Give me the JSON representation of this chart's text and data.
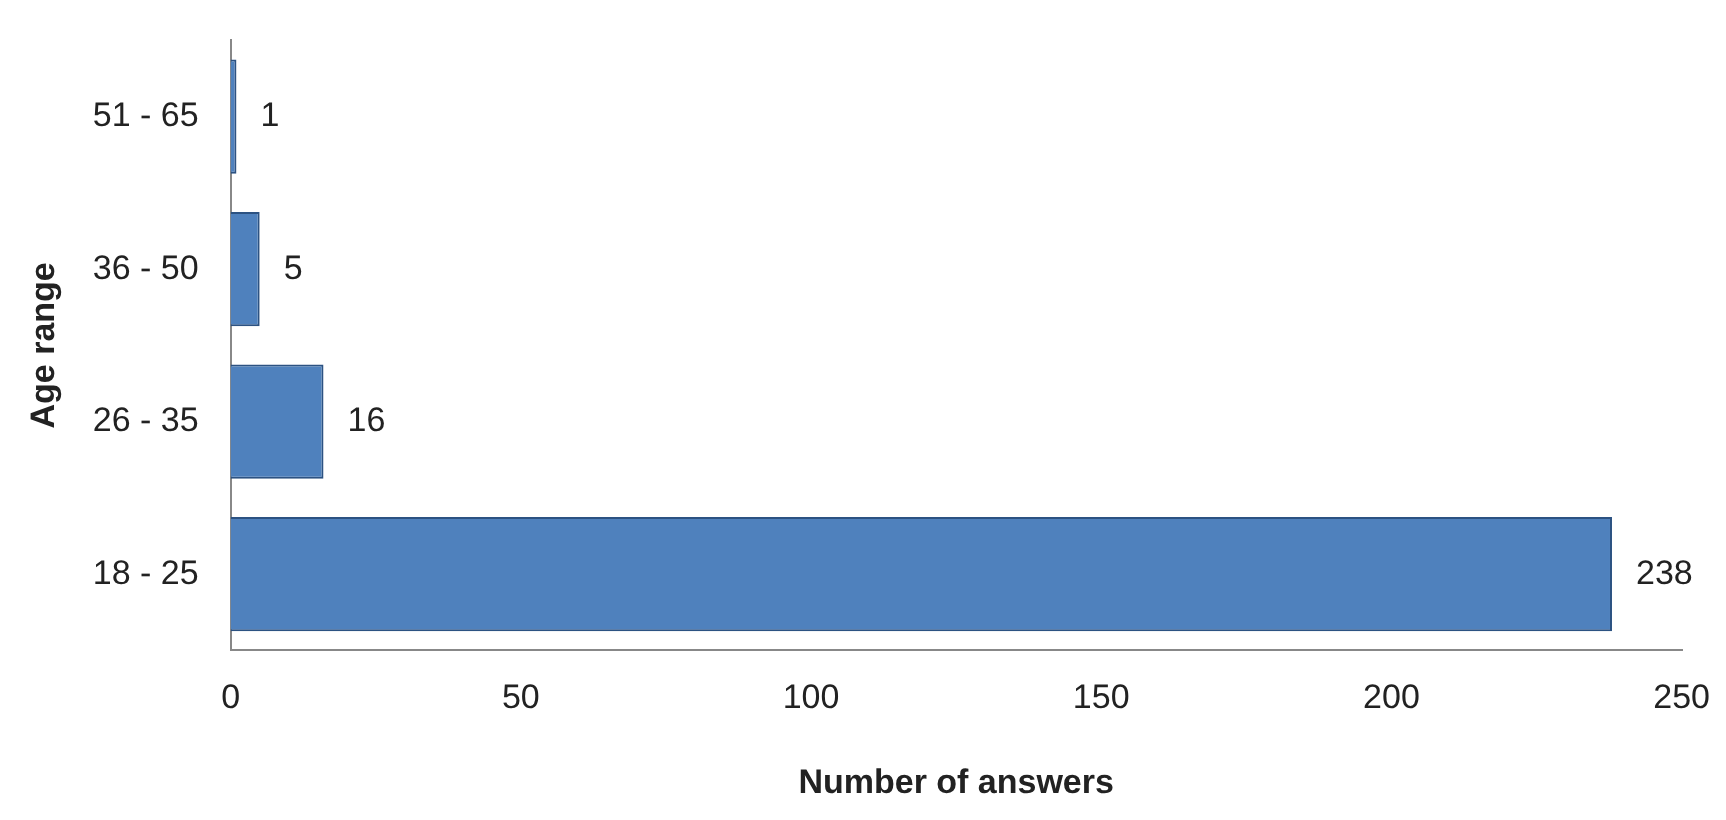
{
  "chart_data": {
    "type": "bar",
    "orientation": "horizontal",
    "xlabel": "Number of answers",
    "ylabel": "Age range",
    "categories": [
      "51 - 65",
      "36 - 50",
      "26 - 35",
      "18 - 25"
    ],
    "values": [
      1,
      5,
      16,
      238
    ],
    "color": "#4f81bd",
    "xlim": [
      0,
      250
    ],
    "xticks": [
      0,
      50,
      100,
      150,
      200,
      250
    ],
    "grid": false,
    "legend": false,
    "data_labels": true
  }
}
